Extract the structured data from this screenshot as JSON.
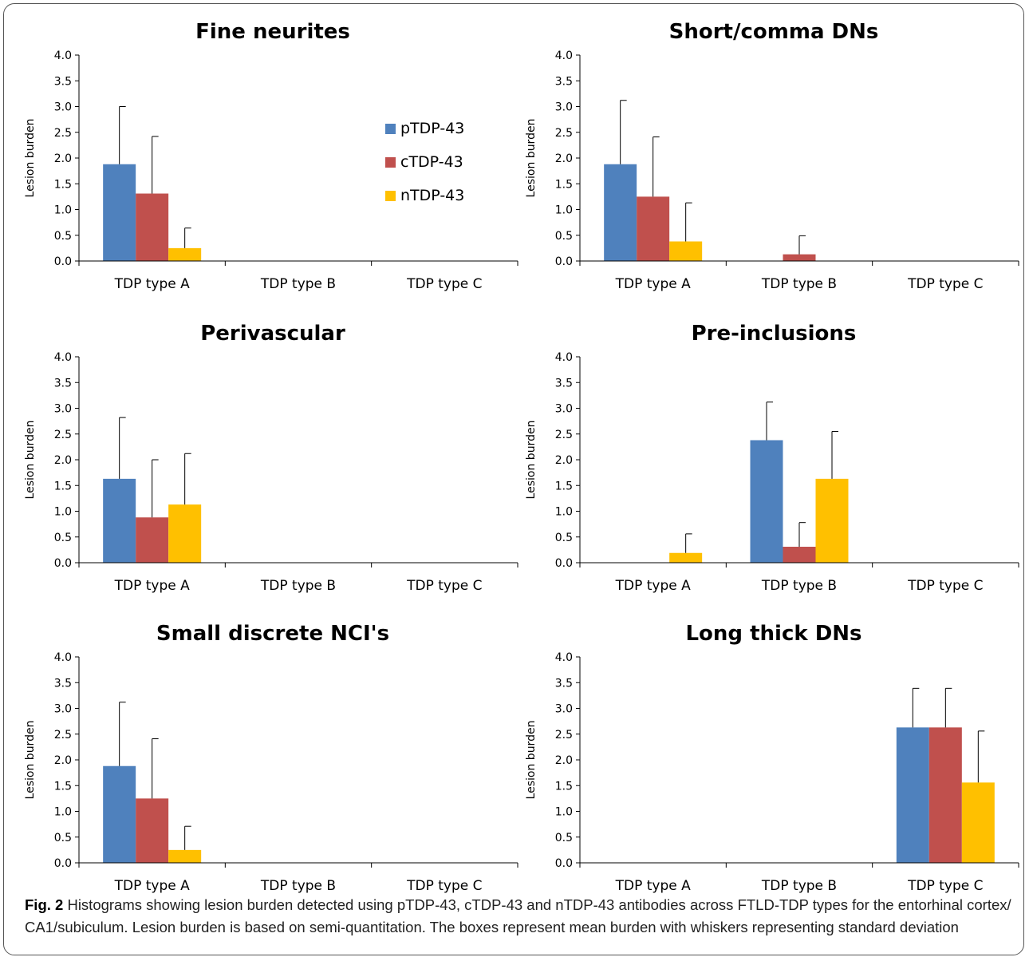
{
  "chart_data": [
    {
      "type": "bar",
      "title": "Fine neurites",
      "ylabel": "Lesion burden",
      "categories": [
        "TDP type A",
        "TDP type B",
        "TDP type C"
      ],
      "ylim": [
        0,
        4
      ],
      "yticks": [
        "0.0",
        "0.5",
        "1.0",
        "1.5",
        "2.0",
        "2.5",
        "3.0",
        "3.5",
        "4.0"
      ],
      "series": [
        {
          "name": "pTDP-43",
          "values": [
            1.88,
            0,
            0
          ],
          "errors": [
            1.12,
            0,
            0
          ]
        },
        {
          "name": "cTDP-43",
          "values": [
            1.31,
            0,
            0
          ],
          "errors": [
            1.11,
            0,
            0
          ]
        },
        {
          "name": "nTDP-43",
          "values": [
            0.25,
            0,
            0
          ],
          "errors": [
            0.39,
            0,
            0
          ]
        }
      ]
    },
    {
      "type": "bar",
      "title": "Short/comma DNs",
      "ylabel": "Lesion burden",
      "categories": [
        "TDP type A",
        "TDP type B",
        "TDP type C"
      ],
      "ylim": [
        0,
        4
      ],
      "yticks": [
        "0.0",
        "0.5",
        "1.0",
        "1.5",
        "2.0",
        "2.5",
        "3.0",
        "3.5",
        "4.0"
      ],
      "series": [
        {
          "name": "pTDP-43",
          "values": [
            1.88,
            0,
            0
          ],
          "errors": [
            1.24,
            0,
            0
          ]
        },
        {
          "name": "cTDP-43",
          "values": [
            1.25,
            0,
            0
          ],
          "errors": [
            1.16,
            0,
            0
          ]
        },
        {
          "name": "nTDP-43",
          "values": [
            0.38,
            0,
            0
          ],
          "errors": [
            0.75,
            0,
            0
          ]
        }
      ],
      "series_b_extra": [
        0,
        0.13,
        0
      ],
      "series_b_extra_err": [
        0,
        0.36,
        0
      ]
    },
    {
      "type": "bar",
      "title": "Perivascular",
      "ylabel": "Lesion burden",
      "categories": [
        "TDP type A",
        "TDP type B",
        "TDP type C"
      ],
      "ylim": [
        0,
        4
      ],
      "yticks": [
        "0.0",
        "0.5",
        "1.0",
        "1.5",
        "2.0",
        "2.5",
        "3.0",
        "3.5",
        "4.0"
      ],
      "series": [
        {
          "name": "pTDP-43",
          "values": [
            1.63,
            0,
            0
          ],
          "errors": [
            1.19,
            0,
            0
          ]
        },
        {
          "name": "cTDP-43",
          "values": [
            0.88,
            0,
            0
          ],
          "errors": [
            1.12,
            0,
            0
          ]
        },
        {
          "name": "nTDP-43",
          "values": [
            1.13,
            0,
            0
          ],
          "errors": [
            0.99,
            0,
            0
          ]
        }
      ]
    },
    {
      "type": "bar",
      "title": "Pre-inclusions",
      "ylabel": "Lesion burden",
      "categories": [
        "TDP type A",
        "TDP type B",
        "TDP type C"
      ],
      "ylim": [
        0,
        4
      ],
      "yticks": [
        "0.0",
        "0.5",
        "1.0",
        "1.5",
        "2.0",
        "2.5",
        "3.0",
        "3.5",
        "4.0"
      ],
      "series": [
        {
          "name": "pTDP-43",
          "values": [
            0,
            2.38,
            0
          ],
          "errors": [
            0,
            0.74,
            0
          ]
        },
        {
          "name": "cTDP-43",
          "values": [
            0,
            0.31,
            0
          ],
          "errors": [
            0,
            0.47,
            0
          ]
        },
        {
          "name": "nTDP-43",
          "values": [
            0.19,
            1.63,
            0
          ],
          "errors": [
            0.37,
            0.92,
            0
          ]
        }
      ]
    },
    {
      "type": "bar",
      "title": "Small discrete NCI's",
      "ylabel": "Lesion burden",
      "categories": [
        "TDP type A",
        "TDP type B",
        "TDP type C"
      ],
      "ylim": [
        0,
        4
      ],
      "yticks": [
        "0.0",
        "0.5",
        "1.0",
        "1.5",
        "2.0",
        "2.5",
        "3.0",
        "3.5",
        "4.0"
      ],
      "series": [
        {
          "name": "pTDP-43",
          "values": [
            1.88,
            0,
            0
          ],
          "errors": [
            1.24,
            0,
            0
          ]
        },
        {
          "name": "cTDP-43",
          "values": [
            1.25,
            0,
            0
          ],
          "errors": [
            1.16,
            0,
            0
          ]
        },
        {
          "name": "nTDP-43",
          "values": [
            0.25,
            0,
            0
          ],
          "errors": [
            0.46,
            0,
            0
          ]
        }
      ]
    },
    {
      "type": "bar",
      "title": "Long thick DNs",
      "ylabel": "Lesion burden",
      "categories": [
        "TDP type A",
        "TDP type B",
        "TDP type C"
      ],
      "ylim": [
        0,
        4
      ],
      "yticks": [
        "0.0",
        "0.5",
        "1.0",
        "1.5",
        "2.0",
        "2.5",
        "3.0",
        "3.5",
        "4.0"
      ],
      "series": [
        {
          "name": "pTDP-43",
          "values": [
            0,
            0,
            2.63
          ],
          "errors": [
            0,
            0,
            0.76
          ]
        },
        {
          "name": "cTDP-43",
          "values": [
            0,
            0,
            2.63
          ],
          "errors": [
            0,
            0,
            0.76
          ]
        },
        {
          "name": "nTDP-43",
          "values": [
            0,
            0,
            1.56
          ],
          "errors": [
            0,
            0,
            1.0
          ]
        }
      ]
    }
  ],
  "legend": {
    "items": [
      {
        "label": "pTDP-43",
        "color": "#4F81BD"
      },
      {
        "label": "cTDP-43",
        "color": "#C0504D"
      },
      {
        "label": "nTDP-43",
        "color": "#FFC000"
      }
    ]
  },
  "colors": {
    "pTDP-43": "#4F81BD",
    "cTDP-43": "#C0504D",
    "nTDP-43": "#FFC000",
    "axis": "#000000"
  },
  "caption": {
    "label": "Fig. 2",
    "text": " Histograms showing lesion burden detected using pTDP-43, cTDP-43 and nTDP-43 antibodies across FTLD-TDP types for the entorhinal cortex/ CA1/subiculum. Lesion burden is based on semi-quantitation. The boxes represent mean burden with whiskers representing standard deviation"
  }
}
